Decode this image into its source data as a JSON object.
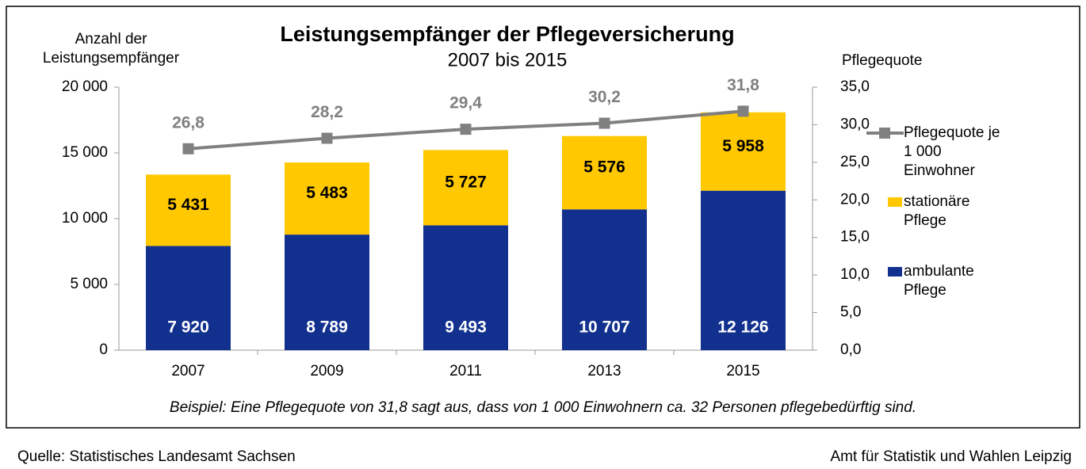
{
  "chart_data": {
    "type": "bar",
    "title": "Leistungsempfänger der Pflegeversicherung",
    "subtitle": "2007 bis 2015",
    "y_label": "Anzahl der Leistungsempfänger",
    "y2_label": "Pflegequote",
    "note": "Beispiel: Eine Pflegequote von 31,8 sagt aus, dass von 1 000 Einwohnern ca. 32 Personen pflegebedürftig sind.",
    "source": "Quelle: Statistisches Landesamt Sachsen",
    "publisher": "Amt für Statistik und Wahlen Leipzig",
    "stacked": true,
    "categories": [
      "2007",
      "2009",
      "2011",
      "2013",
      "2015"
    ],
    "series": [
      {
        "name": "ambulante Pflege",
        "type": "bar",
        "color": "#12318f",
        "values": [
          7920,
          8789,
          9493,
          10707,
          12126
        ],
        "value_labels": [
          "7 920",
          "8 789",
          "9 493",
          "10 707",
          "12 126"
        ]
      },
      {
        "name": "stationäre Pflege",
        "type": "bar",
        "color": "#ffc800",
        "values": [
          5431,
          5483,
          5727,
          5576,
          5958
        ],
        "value_labels": [
          "5 431",
          "5 483",
          "5 727",
          "5 576",
          "5 958"
        ]
      },
      {
        "name": "Pflegequote je 1 000 Einwohner",
        "type": "line",
        "axis": "y2",
        "color": "#808080",
        "values": [
          26.8,
          28.2,
          29.4,
          30.2,
          31.8
        ],
        "value_labels": [
          "26,8",
          "28,2",
          "29,4",
          "30,2",
          "31,8"
        ]
      }
    ],
    "ylim": [
      0,
      20000
    ],
    "yticks": [
      0,
      {
        "value": 5000,
        "label": "5 000"
      },
      {
        "value": 10000,
        "label": "10 000"
      },
      {
        "value": 15000,
        "label": "15 000"
      },
      {
        "value": 20000,
        "label": "20 000"
      }
    ],
    "y2lim": [
      0,
      35
    ],
    "y2ticks": [
      {
        "value": 0,
        "label": "0,0"
      },
      {
        "value": 5,
        "label": "5,0"
      },
      {
        "value": 10,
        "label": "10,0"
      },
      {
        "value": 15,
        "label": "15,0"
      },
      {
        "value": 20,
        "label": "20,0"
      },
      {
        "value": 25,
        "label": "25,0"
      },
      {
        "value": 30,
        "label": "30,0"
      },
      {
        "value": 35,
        "label": "35,0"
      }
    ],
    "legend": "right"
  }
}
